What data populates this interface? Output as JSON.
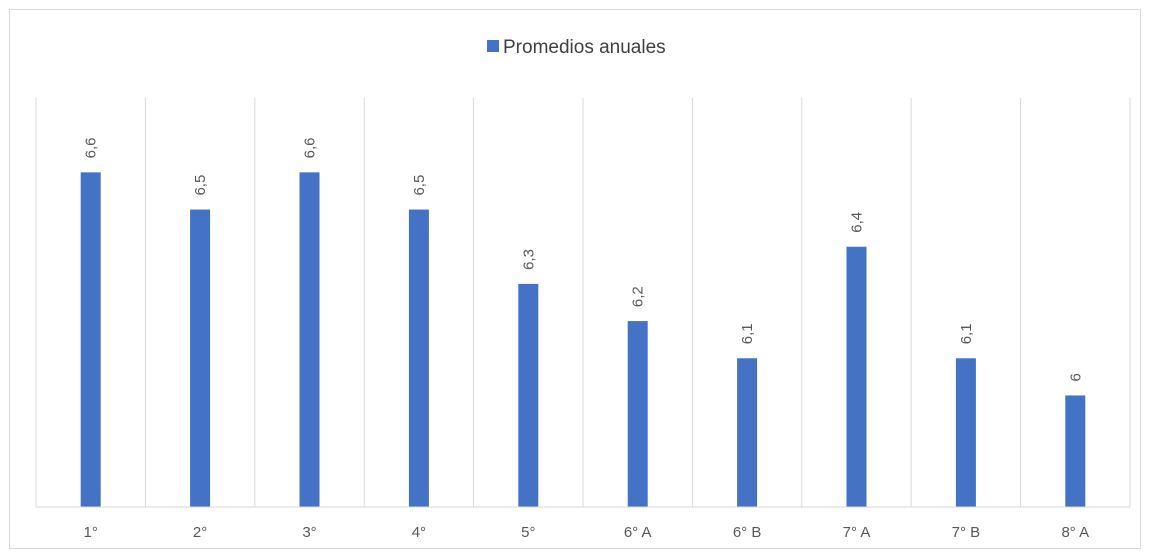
{
  "chart_data": {
    "type": "bar",
    "title": "",
    "xlabel": "",
    "ylabel": "",
    "categories": [
      "1°",
      "2°",
      "3°",
      "4°",
      "5°",
      "6° A",
      "6° B",
      "7° A",
      "7° B",
      "8° A"
    ],
    "series": [
      {
        "name": "Promedios anuales",
        "values": [
          6.6,
          6.5,
          6.6,
          6.5,
          6.3,
          6.2,
          6.1,
          6.4,
          6.1,
          6.0
        ],
        "labels": [
          "6,6",
          "6,5",
          "6,6",
          "6,5",
          "6,3",
          "6,2",
          "6,1",
          "6,4",
          "6,1",
          "6"
        ],
        "color": "#4472C4"
      }
    ],
    "ylim": [
      5.7,
      6.8
    ],
    "grid": "vertical",
    "legend": "top-center",
    "colors": {
      "bar": "#4472C4",
      "grid": "#d9d9d9",
      "frame": "#d9d9d9",
      "text": "#595959"
    }
  }
}
